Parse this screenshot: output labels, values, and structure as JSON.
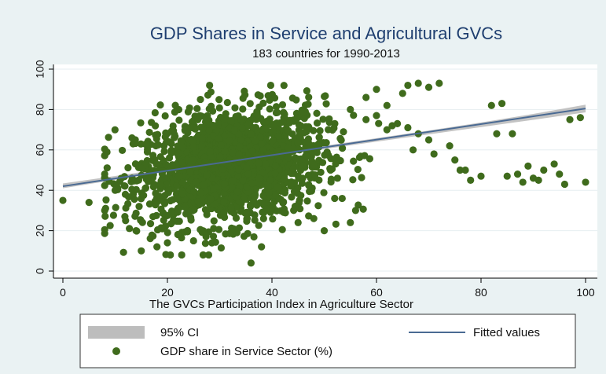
{
  "chart_data": {
    "type": "scatter",
    "title": "GDP Shares in Service and Agricultural GVCs",
    "subtitle": "183 countries for 1990-2013",
    "xlabel": "The GVCs Participation Index in Agriculture Sector",
    "ylabel": "",
    "xlim": [
      0,
      100
    ],
    "ylim": [
      0,
      100
    ],
    "xticks": [
      "0",
      "20",
      "40",
      "60",
      "80",
      "100"
    ],
    "yticks": [
      "0",
      "20",
      "40",
      "60",
      "80",
      "100"
    ],
    "grid": true,
    "legend": {
      "placement": "bottom",
      "entries": [
        {
          "label": "95% CI",
          "kind": "band"
        },
        {
          "label": "Fitted values",
          "kind": "line"
        },
        {
          "label": "GDP share in Service Sector (%)",
          "kind": "marker"
        }
      ]
    },
    "colors": {
      "points": "#3f6b1c",
      "fit_line": "#4a6a93",
      "ci_band": "#bdbdbd",
      "title": "#1f3f70",
      "plot_bg": "#ffffff",
      "outer_bg": "#eaf2f3",
      "grid": "#e6eef0"
    },
    "fitted_line": {
      "x": [
        0,
        100
      ],
      "y": [
        42,
        80.5
      ]
    },
    "ci_band": {
      "x": [
        0,
        10,
        20,
        30,
        40,
        50,
        60,
        70,
        80,
        90,
        100
      ],
      "lower": [
        41,
        45.2,
        49.3,
        53.1,
        56.7,
        60.4,
        64.1,
        67.7,
        71.3,
        74.9,
        78.6
      ],
      "upper": [
        43.4,
        47.1,
        50.9,
        54.6,
        58.3,
        62.0,
        65.8,
        69.6,
        73.6,
        77.8,
        82.4
      ]
    },
    "points_cluster": {
      "approx_count": 1800,
      "x_mean": 32,
      "x_sd": 9,
      "y_mean": 52,
      "y_sd": 14
    },
    "points_outlying": {
      "x": [
        0,
        5,
        8,
        10,
        12,
        14,
        15,
        18,
        20,
        25,
        36,
        38,
        45,
        48,
        50,
        52,
        55,
        56,
        58,
        60,
        62,
        65,
        66,
        68,
        70,
        72,
        75,
        76,
        78,
        80,
        82,
        84,
        86,
        88,
        90,
        92,
        94,
        95,
        96,
        99,
        100,
        62,
        64,
        66,
        68,
        70,
        55,
        58,
        60,
        63,
        67,
        71,
        74,
        77,
        83,
        85,
        87,
        89,
        91,
        97
      ],
      "y": [
        35,
        34,
        30,
        40,
        25,
        20,
        10,
        12,
        14,
        15,
        4,
        12,
        24,
        26,
        20,
        36,
        24,
        30,
        86,
        90,
        82,
        88,
        92,
        93,
        91,
        93,
        55,
        50,
        45,
        47,
        82,
        83,
        68,
        44,
        46,
        50,
        53,
        48,
        43,
        76,
        44,
        70,
        73,
        71,
        68,
        65,
        80,
        75,
        77,
        72,
        60,
        58,
        62,
        50,
        68,
        47,
        48,
        52,
        45,
        75
      ]
    }
  }
}
